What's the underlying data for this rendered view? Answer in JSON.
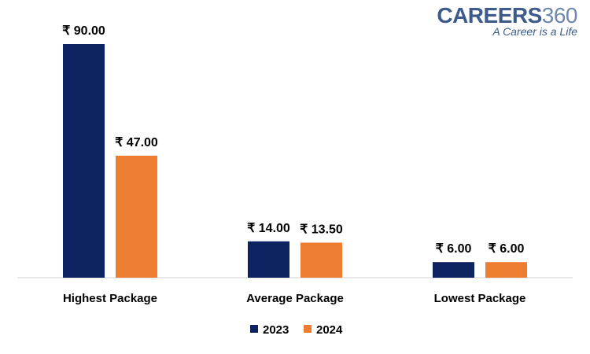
{
  "logo": {
    "brand_bold": "CAREERS",
    "brand_light": "360",
    "tagline": "A Career is a Life"
  },
  "chart_data": {
    "type": "bar",
    "title": "",
    "xlabel": "",
    "ylabel": "",
    "ylim": [
      0,
      90
    ],
    "grid": false,
    "legend_position": "bottom",
    "categories": [
      "Highest Package",
      "Average Package",
      "Lowest Package"
    ],
    "series": [
      {
        "name": "2023",
        "color": "#0d2260",
        "values": [
          90.0,
          14.0,
          6.0
        ],
        "labels": [
          "₹ 90.00",
          "₹ 14.00",
          "₹ 6.00"
        ]
      },
      {
        "name": "2024",
        "color": "#ed7d31",
        "values": [
          47.0,
          13.5,
          6.0
        ],
        "labels": [
          "₹ 47.00",
          "₹ 13.50",
          "₹ 6.00"
        ]
      }
    ]
  }
}
